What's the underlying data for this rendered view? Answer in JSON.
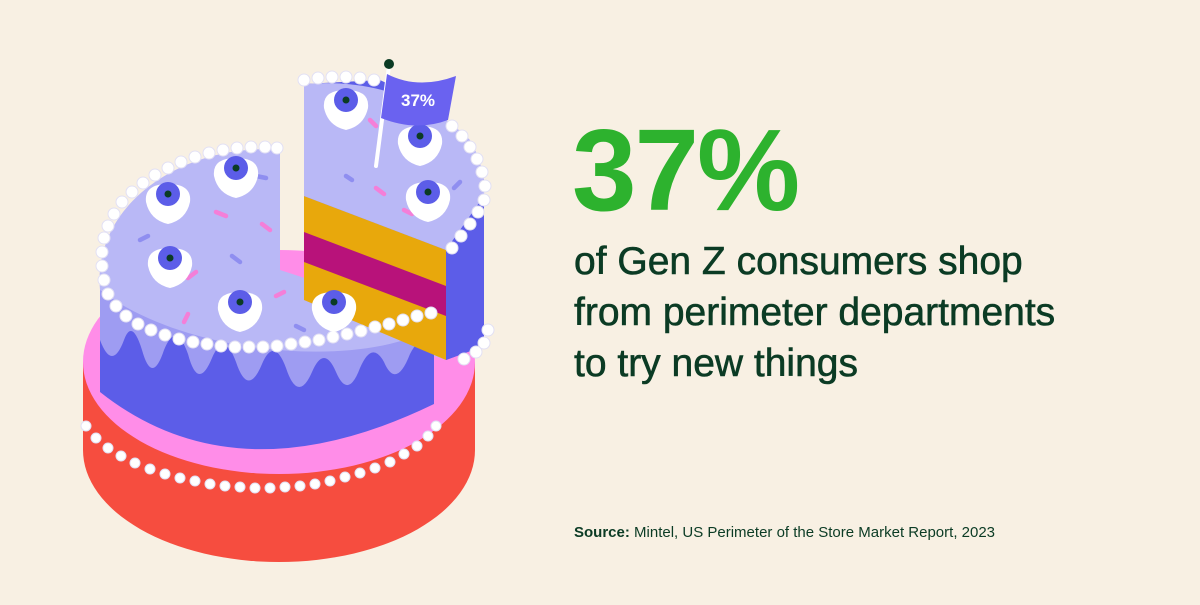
{
  "illustration": {
    "flag_text": "37%",
    "colors": {
      "background": "#f8f0e3",
      "base_red": "#f64d3f",
      "base_pink": "#ff8de8",
      "cake_side": "#5c5de8",
      "frosting": "#b9b8f6",
      "bead": "#ffffff",
      "blueberry": "#5c5de8",
      "layer_yellow": "#e8a80c",
      "layer_magenta": "#b8127a",
      "sprinkle_pink": "#f47fd8",
      "sprinkle_purple": "#8f8ef0",
      "flag": "#6a62f0"
    }
  },
  "stat": {
    "value": "37%",
    "description": "of Gen Z consumers shop from perimeter departments to try new things",
    "color": "#2db22e"
  },
  "source": {
    "label": "Source:",
    "text": "Mintel, US Perimeter of the Store Market Report, 2023"
  }
}
